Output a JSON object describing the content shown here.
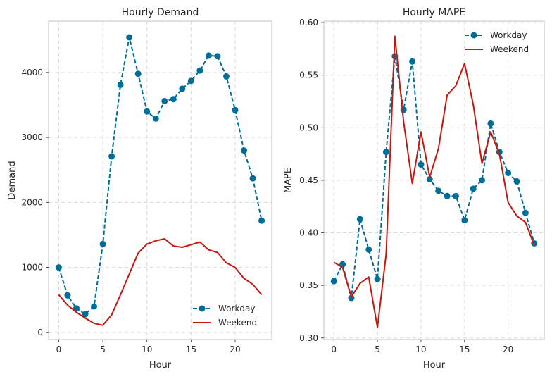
{
  "colors": {
    "workday": "#006d99",
    "weekend": "#c8150e"
  },
  "chart_data": [
    {
      "type": "line",
      "title": "Hourly Demand",
      "xlabel": "Hour",
      "ylabel": "Demand",
      "xlim": [
        -1.15,
        24.15
      ],
      "ylim": [
        -110,
        4790
      ],
      "xticks": [
        0,
        5,
        10,
        15,
        20
      ],
      "yticks": [
        0,
        1000,
        2000,
        3000,
        4000
      ],
      "grid": true,
      "legend_position": "lower right",
      "x": [
        0,
        1,
        2,
        3,
        4,
        5,
        6,
        7,
        8,
        9,
        10,
        11,
        12,
        13,
        14,
        15,
        16,
        17,
        18,
        19,
        20,
        21,
        22,
        23
      ],
      "series": [
        {
          "name": "Workday",
          "style": "dashed-markers",
          "values": [
            1000,
            570,
            370,
            280,
            400,
            1360,
            2710,
            3810,
            4540,
            3980,
            3400,
            3290,
            3560,
            3590,
            3750,
            3870,
            4030,
            4260,
            4250,
            3940,
            3420,
            2800,
            2370,
            1720
          ]
        },
        {
          "name": "Weekend",
          "style": "solid",
          "values": [
            580,
            420,
            310,
            220,
            140,
            110,
            270,
            580,
            900,
            1220,
            1360,
            1410,
            1440,
            1330,
            1310,
            1350,
            1390,
            1270,
            1230,
            1070,
            1000,
            830,
            740,
            580
          ]
        }
      ]
    },
    {
      "type": "line",
      "title": "Hourly MAPE",
      "xlabel": "Hour",
      "ylabel": "MAPE",
      "xlim": [
        -1.15,
        24.15
      ],
      "ylim": [
        0.2985,
        0.6014
      ],
      "xticks": [
        0,
        5,
        10,
        15,
        20
      ],
      "yticks": [
        0.3,
        0.35,
        0.4,
        0.45,
        0.5,
        0.55,
        0.6
      ],
      "grid": true,
      "legend_position": "upper right",
      "x": [
        0,
        1,
        2,
        3,
        4,
        5,
        6,
        7,
        8,
        9,
        10,
        11,
        12,
        13,
        14,
        15,
        16,
        17,
        18,
        19,
        20,
        21,
        22,
        23
      ],
      "series": [
        {
          "name": "Workday",
          "style": "dashed-markers",
          "values": [
            0.354,
            0.37,
            0.338,
            0.413,
            0.384,
            0.356,
            0.477,
            0.568,
            0.517,
            0.563,
            0.465,
            0.451,
            0.44,
            0.435,
            0.435,
            0.412,
            0.442,
            0.45,
            0.504,
            0.477,
            0.457,
            0.449,
            0.419,
            0.39
          ]
        },
        {
          "name": "Weekend",
          "style": "solid",
          "values": [
            0.372,
            0.367,
            0.339,
            0.352,
            0.358,
            0.31,
            0.38,
            0.587,
            0.506,
            0.447,
            0.496,
            0.453,
            0.48,
            0.531,
            0.54,
            0.561,
            0.522,
            0.466,
            0.496,
            0.475,
            0.429,
            0.416,
            0.41,
            0.388
          ]
        }
      ]
    }
  ]
}
